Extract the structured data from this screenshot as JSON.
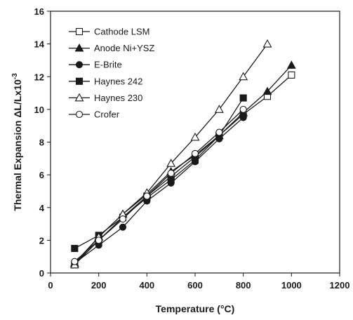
{
  "chart_data": {
    "type": "line",
    "title": "",
    "xlabel": "Temperature (°C)",
    "ylabel": "Thermal Expansion ΔL/Lx10",
    "ylabel_superscript": "-3",
    "xlim": [
      0,
      1200
    ],
    "ylim": [
      0,
      16
    ],
    "xticks": [
      0,
      200,
      400,
      600,
      800,
      1000,
      1200
    ],
    "yticks": [
      0,
      2,
      4,
      6,
      8,
      10,
      12,
      14,
      16
    ],
    "grid": false,
    "legend_position": "top-left",
    "series": [
      {
        "name": "Cathode LSM",
        "marker": "square-open",
        "color": "#1a1a1a",
        "points": [
          [
            100,
            0.5
          ],
          [
            200,
            2.0
          ],
          [
            300,
            3.4
          ],
          [
            400,
            4.7
          ],
          [
            500,
            5.9
          ],
          [
            600,
            7.1
          ],
          [
            700,
            8.4
          ],
          [
            800,
            9.7
          ],
          [
            900,
            10.8
          ],
          [
            1000,
            12.1
          ]
        ]
      },
      {
        "name": "Anode Ni+YSZ",
        "marker": "triangle-filled",
        "color": "#1a1a1a",
        "points": [
          [
            100,
            0.6
          ],
          [
            200,
            2.2
          ],
          [
            300,
            3.6
          ],
          [
            400,
            4.8
          ],
          [
            500,
            6.2
          ],
          [
            600,
            7.2
          ],
          [
            700,
            8.4
          ],
          [
            800,
            9.8
          ],
          [
            900,
            11.1
          ],
          [
            1000,
            12.7
          ]
        ]
      },
      {
        "name": "E-Brite",
        "marker": "circle-filled",
        "color": "#1a1a1a",
        "points": [
          [
            100,
            0.6
          ],
          [
            200,
            1.7
          ],
          [
            300,
            2.8
          ],
          [
            400,
            4.4
          ],
          [
            500,
            5.5
          ],
          [
            600,
            6.8
          ],
          [
            700,
            8.2
          ],
          [
            800,
            9.5
          ]
        ]
      },
      {
        "name": "Haynes 242",
        "marker": "square-filled",
        "color": "#1a1a1a",
        "points": [
          [
            100,
            1.5
          ],
          [
            200,
            2.3
          ],
          [
            300,
            3.4
          ],
          [
            400,
            4.6
          ],
          [
            500,
            5.7
          ],
          [
            600,
            6.9
          ],
          [
            700,
            8.4
          ],
          [
            800,
            10.7
          ]
        ]
      },
      {
        "name": "Haynes 230",
        "marker": "triangle-open",
        "color": "#1a1a1a",
        "points": [
          [
            100,
            0.5
          ],
          [
            200,
            2.2
          ],
          [
            300,
            3.6
          ],
          [
            400,
            4.9
          ],
          [
            500,
            6.7
          ],
          [
            600,
            8.3
          ],
          [
            700,
            10.0
          ],
          [
            800,
            12.0
          ],
          [
            900,
            14.0
          ]
        ]
      },
      {
        "name": "Crofer",
        "marker": "circle-open",
        "color": "#1a1a1a",
        "points": [
          [
            100,
            0.7
          ],
          [
            200,
            2.0
          ],
          [
            300,
            3.3
          ],
          [
            400,
            4.7
          ],
          [
            500,
            6.1
          ],
          [
            600,
            7.3
          ],
          [
            700,
            8.6
          ],
          [
            800,
            10.0
          ]
        ]
      }
    ]
  }
}
